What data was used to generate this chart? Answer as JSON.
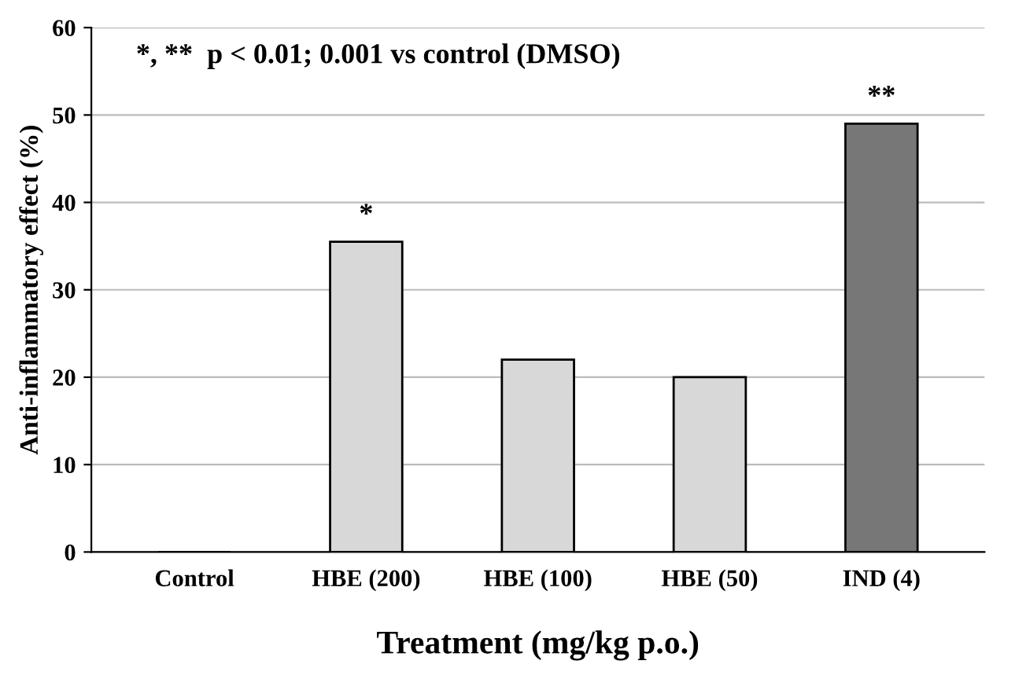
{
  "chart_data": {
    "type": "bar",
    "xlabel": "Treatment (mg/kg p.o.)",
    "ylabel": "Anti-inflammatory effect (%)",
    "categories": [
      "Control",
      "HBE (200)",
      "HBE (100)",
      "HBE (50)",
      "IND (4)"
    ],
    "values": [
      0,
      35.5,
      22,
      20,
      49
    ],
    "colors": [
      "#000000",
      "#d8d8d8",
      "#d8d8d8",
      "#d8d8d8",
      "#777777"
    ],
    "ylim": [
      0,
      60
    ],
    "yticks": [
      0,
      10,
      20,
      30,
      40,
      50,
      60
    ],
    "grid": "y",
    "annotations": [
      "*, **  p < 0.01; 0.001 vs control (DMSO)",
      {
        "text": "*",
        "x": "HBE (200)",
        "y": 35.5
      },
      {
        "text": "**",
        "x": "IND (4)",
        "y": 49
      }
    ]
  }
}
